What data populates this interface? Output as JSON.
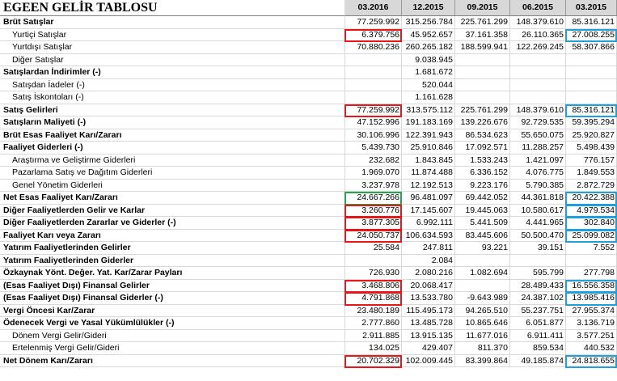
{
  "title": "EGEEN GELİR TABLOSU",
  "periods": [
    "03.2016",
    "12.2015",
    "09.2015",
    "06.2015",
    "03.2015"
  ],
  "rows": [
    {
      "label": "Brüt Satışlar",
      "style": "bold",
      "values": [
        "77.259.992",
        "315.256.784",
        "225.761.299",
        "148.379.610",
        "85.316.121"
      ]
    },
    {
      "label": "Yurtiçi Satışlar",
      "style": "indent",
      "values": [
        "6.379.756",
        "45.952.657",
        "37.161.358",
        "26.110.365",
        "27.008.255"
      ]
    },
    {
      "label": "Yurtdışı Satışlar",
      "style": "indent",
      "values": [
        "70.880.236",
        "260.265.182",
        "188.599.941",
        "122.269.245",
        "58.307.866"
      ]
    },
    {
      "label": "Diğer Satışlar",
      "style": "indent",
      "values": [
        "",
        "9.038.945",
        "",
        "",
        ""
      ]
    },
    {
      "label": "Satışlardan İndirimler (-)",
      "style": "bold",
      "values": [
        "",
        "1.681.672",
        "",
        "",
        ""
      ]
    },
    {
      "label": "Satışdan İadeler (-)",
      "style": "indent",
      "values": [
        "",
        "520.044",
        "",
        "",
        ""
      ]
    },
    {
      "label": "Satış İskontoları (-)",
      "style": "indent",
      "values": [
        "",
        "1.161.628",
        "",
        "",
        ""
      ]
    },
    {
      "label": "Satış Gelirleri",
      "style": "bold",
      "values": [
        "77.259.992",
        "313.575.112",
        "225.761.299",
        "148.379.610",
        "85.316.121"
      ]
    },
    {
      "label": "Satışların Maliyeti (-)",
      "style": "bold",
      "values": [
        "47.152.996",
        "191.183.169",
        "139.226.676",
        "92.729.535",
        "59.395.294"
      ]
    },
    {
      "label": "Brüt Esas Faaliyet Karı/Zararı",
      "style": "bold",
      "values": [
        "30.106.996",
        "122.391.943",
        "86.534.623",
        "55.650.075",
        "25.920.827"
      ]
    },
    {
      "label": "Faaliyet Giderleri (-)",
      "style": "bold",
      "values": [
        "5.439.730",
        "25.910.846",
        "17.092.571",
        "11.288.257",
        "5.498.439"
      ]
    },
    {
      "label": "Araştırma ve Geliştirme Giderleri",
      "style": "indent",
      "values": [
        "232.682",
        "1.843.845",
        "1.533.243",
        "1.421.097",
        "776.157"
      ]
    },
    {
      "label": "Pazarlama Satış ve Dağıtım Giderleri",
      "style": "indent",
      "values": [
        "1.969.070",
        "11.874.488",
        "6.336.152",
        "4.076.775",
        "1.849.553"
      ]
    },
    {
      "label": "Genel Yönetim Giderleri",
      "style": "indent",
      "values": [
        "3.237.978",
        "12.192.513",
        "9.223.176",
        "5.790.385",
        "2.872.729"
      ]
    },
    {
      "label": "Net Esas Faaliyet Karı/Zararı",
      "style": "bold",
      "values": [
        "24.667.266",
        "96.481.097",
        "69.442.052",
        "44.361.818",
        "20.422.388"
      ]
    },
    {
      "label": "Diğer Faaliyetlerden Gelir ve Karlar",
      "style": "bold",
      "values": [
        "3.260.776",
        "17.145.607",
        "19.445.063",
        "10.580.617",
        "4.979.534"
      ]
    },
    {
      "label": "Diğer Faaliyetlerden Zararlar ve Giderler (-)",
      "style": "bold",
      "values": [
        "3.877.305",
        "6.992.111",
        "5.441.509",
        "4.441.965",
        "302.840"
      ]
    },
    {
      "label": "Faaliyet Karı veya Zararı",
      "style": "bold",
      "values": [
        "24.050.737",
        "106.634.593",
        "83.445.606",
        "50.500.470",
        "25.099.082"
      ]
    },
    {
      "label": "Yatırım Faaliyetlerinden Gelirler",
      "style": "bold",
      "values": [
        "25.584",
        "247.811",
        "93.221",
        "39.151",
        "7.552"
      ]
    },
    {
      "label": "Yatırım Faaliyetlerinden Giderler",
      "style": "bold",
      "values": [
        "",
        "2.084",
        "",
        "",
        ""
      ]
    },
    {
      "label": "Özkaynak Yönt. Değer. Yat. Kar/Zarar Payları",
      "style": "bold",
      "values": [
        "726.930",
        "2.080.216",
        "1.082.694",
        "595.799",
        "277.798"
      ]
    },
    {
      "label": "(Esas Faaliyet Dışı) Finansal Gelirler",
      "style": "bold",
      "values": [
        "3.468.806",
        "20.068.417",
        "",
        "28.489.433",
        "16.556.358"
      ]
    },
    {
      "label": "(Esas Faaliyet Dışı) Finansal Giderler (-)",
      "style": "bold",
      "values": [
        "4.791.868",
        "13.533.780",
        "-9.643.989",
        "24.387.102",
        "13.985.416"
      ]
    },
    {
      "label": "Vergi Öncesi Kar/Zarar",
      "style": "bold",
      "values": [
        "23.480.189",
        "115.495.173",
        "94.265.510",
        "55.237.751",
        "27.955.374"
      ]
    },
    {
      "label": "Ödenecek Vergi ve Yasal Yükümlülükler (-)",
      "style": "bold",
      "values": [
        "2.777.860",
        "13.485.728",
        "10.865.646",
        "6.051.877",
        "3.136.719"
      ]
    },
    {
      "label": "Dönem Vergi Gelir/Gideri",
      "style": "indent",
      "values": [
        "2.911.885",
        "13.915.135",
        "11.677.016",
        "6.911.411",
        "3.577.251"
      ]
    },
    {
      "label": "Ertelenmiş Vergi Gelir/Gideri",
      "style": "indent",
      "values": [
        "134.025",
        "429.407",
        "811.370",
        "859.534",
        "440.532"
      ]
    },
    {
      "label": "Net Dönem Karı/Zararı",
      "style": "bold",
      "values": [
        "20.702.329",
        "102.009.445",
        "83.399.864",
        "49.185.874",
        "24.818.655"
      ]
    }
  ],
  "highlights": [
    {
      "row": 1,
      "col": 0,
      "color": "red"
    },
    {
      "row": 1,
      "col": 4,
      "color": "blue"
    },
    {
      "row": 7,
      "col": 0,
      "color": "red"
    },
    {
      "row": 7,
      "col": 4,
      "color": "blue"
    },
    {
      "row": 14,
      "col": 0,
      "color": "green"
    },
    {
      "row": 14,
      "col": 4,
      "color": "blue"
    },
    {
      "row": 15,
      "col": 0,
      "color": "red"
    },
    {
      "row": 15,
      "col": 4,
      "color": "blue"
    },
    {
      "row": 16,
      "col": 0,
      "color": "red"
    },
    {
      "row": 16,
      "col": 4,
      "color": "blue"
    },
    {
      "row": 17,
      "col": 0,
      "color": "red"
    },
    {
      "row": 17,
      "col": 4,
      "color": "blue"
    },
    {
      "row": 21,
      "col": 0,
      "color": "red"
    },
    {
      "row": 21,
      "col": 4,
      "color": "blue"
    },
    {
      "row": 22,
      "col": 0,
      "color": "red"
    },
    {
      "row": 22,
      "col": 4,
      "color": "blue"
    },
    {
      "row": 27,
      "col": 0,
      "color": "red"
    },
    {
      "row": 27,
      "col": 4,
      "color": "blue"
    }
  ],
  "colors": {
    "red": "#e8151b",
    "green": "#21a64a",
    "blue": "#1fa0dc",
    "header_bg": "#d8d8d8"
  }
}
